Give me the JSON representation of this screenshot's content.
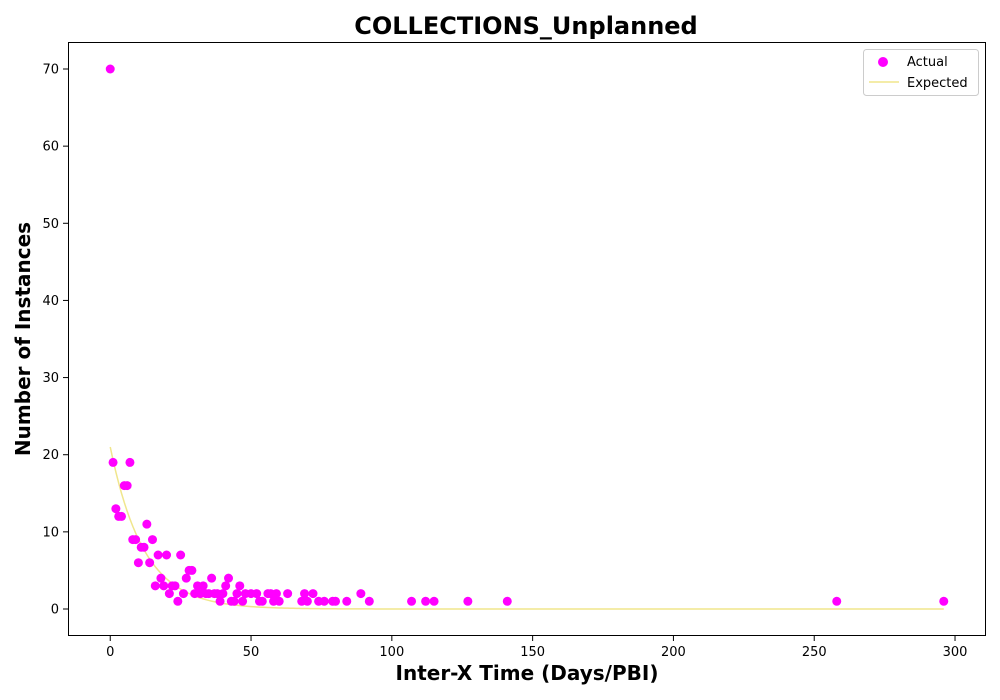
{
  "chart_data": {
    "type": "scatter",
    "title": "COLLECTIONS_Unplanned",
    "xlabel": "Inter-X Time (Days/PBI)",
    "ylabel": "Number of Instances",
    "xlim": [
      -15,
      311
    ],
    "ylim": [
      -3.5,
      73.5
    ],
    "xticks": [
      0,
      50,
      100,
      150,
      200,
      250,
      300
    ],
    "yticks": [
      0,
      10,
      20,
      30,
      40,
      50,
      60,
      70
    ],
    "grid": false,
    "legend_position": "top-right",
    "series": [
      {
        "name": "Actual",
        "kind": "scatter",
        "color": "#ff00ff",
        "points": [
          [
            0,
            70
          ],
          [
            1,
            19
          ],
          [
            2,
            13
          ],
          [
            3,
            12
          ],
          [
            4,
            12
          ],
          [
            5,
            16
          ],
          [
            6,
            16
          ],
          [
            7,
            19
          ],
          [
            8,
            9
          ],
          [
            9,
            9
          ],
          [
            10,
            6
          ],
          [
            11,
            8
          ],
          [
            12,
            8
          ],
          [
            13,
            11
          ],
          [
            14,
            6
          ],
          [
            15,
            9
          ],
          [
            16,
            3
          ],
          [
            17,
            7
          ],
          [
            18,
            4
          ],
          [
            19,
            3
          ],
          [
            20,
            7
          ],
          [
            21,
            2
          ],
          [
            22,
            3
          ],
          [
            23,
            3
          ],
          [
            24,
            1
          ],
          [
            25,
            7
          ],
          [
            26,
            2
          ],
          [
            27,
            4
          ],
          [
            28,
            5
          ],
          [
            29,
            5
          ],
          [
            30,
            2
          ],
          [
            31,
            3
          ],
          [
            32,
            2
          ],
          [
            33,
            3
          ],
          [
            34,
            2
          ],
          [
            35,
            2
          ],
          [
            36,
            4
          ],
          [
            37,
            2
          ],
          [
            38,
            2
          ],
          [
            39,
            1
          ],
          [
            40,
            2
          ],
          [
            41,
            3
          ],
          [
            42,
            4
          ],
          [
            43,
            1
          ],
          [
            44,
            1
          ],
          [
            45,
            2
          ],
          [
            46,
            3
          ],
          [
            47,
            1
          ],
          [
            48,
            2
          ],
          [
            50,
            2
          ],
          [
            52,
            2
          ],
          [
            53,
            1
          ],
          [
            54,
            1
          ],
          [
            56,
            2
          ],
          [
            57,
            2
          ],
          [
            58,
            1
          ],
          [
            59,
            2
          ],
          [
            60,
            1
          ],
          [
            63,
            2
          ],
          [
            68,
            1
          ],
          [
            69,
            2
          ],
          [
            70,
            1
          ],
          [
            72,
            2
          ],
          [
            74,
            1
          ],
          [
            76,
            1
          ],
          [
            79,
            1
          ],
          [
            80,
            1
          ],
          [
            84,
            1
          ],
          [
            89,
            2
          ],
          [
            92,
            1
          ],
          [
            107,
            1
          ],
          [
            112,
            1
          ],
          [
            115,
            1
          ],
          [
            127,
            1
          ],
          [
            141,
            1
          ],
          [
            258,
            1
          ],
          [
            296,
            1
          ]
        ]
      },
      {
        "name": "Expected",
        "kind": "line",
        "color": "#f0e68c",
        "curve": {
          "form": "exponential decay",
          "a": 21,
          "k": 0.084,
          "x_range": [
            0,
            296
          ]
        }
      }
    ]
  }
}
